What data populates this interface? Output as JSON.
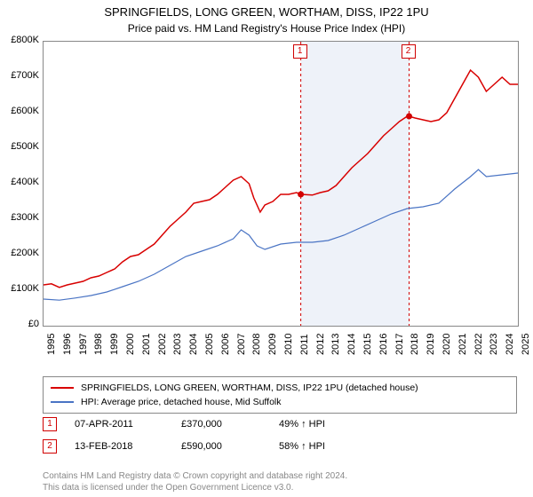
{
  "title": "SPRINGFIELDS, LONG GREEN, WORTHAM, DISS, IP22 1PU",
  "subtitle": "Price paid vs. HM Land Registry's House Price Index (HPI)",
  "chart": {
    "type": "line",
    "background_color": "#ffffff",
    "border_color": "#888888",
    "ylim": [
      0,
      800000
    ],
    "ytick_step": 100000,
    "yticks": [
      "£0",
      "£100K",
      "£200K",
      "£300K",
      "£400K",
      "£500K",
      "£600K",
      "£700K",
      "£800K"
    ],
    "xlim": [
      1995,
      2025
    ],
    "xticks": [
      "1995",
      "1996",
      "1997",
      "1998",
      "1999",
      "2000",
      "2001",
      "2002",
      "2003",
      "2004",
      "2005",
      "2006",
      "2007",
      "2008",
      "2009",
      "2010",
      "2011",
      "2012",
      "2013",
      "2014",
      "2015",
      "2016",
      "2017",
      "2018",
      "2019",
      "2020",
      "2021",
      "2022",
      "2023",
      "2024",
      "2025"
    ],
    "label_fontsize": 11,
    "shaded": {
      "start": 2011.27,
      "end": 2018.12,
      "color": "#eef2f9"
    },
    "markers": [
      {
        "id": "1",
        "x": 2011.27,
        "price": 370000
      },
      {
        "id": "2",
        "x": 2018.12,
        "price": 590000
      }
    ],
    "marker_line_color": "#d00000",
    "marker_point_color": "#d00000",
    "series": [
      {
        "name": "SPRINGFIELDS, LONG GREEN, WORTHAM, DISS, IP22 1PU (detached house)",
        "color": "#d80000",
        "line_width": 1.5,
        "data": [
          [
            1995,
            115000
          ],
          [
            1995.5,
            118000
          ],
          [
            1996,
            108000
          ],
          [
            1996.5,
            115000
          ],
          [
            1997,
            120000
          ],
          [
            1997.5,
            125000
          ],
          [
            1998,
            135000
          ],
          [
            1998.5,
            140000
          ],
          [
            1999,
            150000
          ],
          [
            1999.5,
            160000
          ],
          [
            2000,
            180000
          ],
          [
            2000.5,
            195000
          ],
          [
            2001,
            200000
          ],
          [
            2001.5,
            215000
          ],
          [
            2002,
            230000
          ],
          [
            2002.5,
            255000
          ],
          [
            2003,
            280000
          ],
          [
            2003.5,
            300000
          ],
          [
            2004,
            320000
          ],
          [
            2004.5,
            345000
          ],
          [
            2005,
            350000
          ],
          [
            2005.5,
            355000
          ],
          [
            2006,
            370000
          ],
          [
            2006.5,
            390000
          ],
          [
            2007,
            410000
          ],
          [
            2007.5,
            420000
          ],
          [
            2008,
            400000
          ],
          [
            2008.3,
            360000
          ],
          [
            2008.7,
            320000
          ],
          [
            2009,
            340000
          ],
          [
            2009.5,
            350000
          ],
          [
            2010,
            370000
          ],
          [
            2010.5,
            370000
          ],
          [
            2011,
            375000
          ],
          [
            2011.27,
            370000
          ],
          [
            2012,
            368000
          ],
          [
            2012.5,
            375000
          ],
          [
            2013,
            380000
          ],
          [
            2013.5,
            395000
          ],
          [
            2014,
            420000
          ],
          [
            2014.5,
            445000
          ],
          [
            2015,
            465000
          ],
          [
            2015.5,
            485000
          ],
          [
            2016,
            510000
          ],
          [
            2016.5,
            535000
          ],
          [
            2017,
            555000
          ],
          [
            2017.5,
            575000
          ],
          [
            2018,
            590000
          ],
          [
            2018.12,
            590000
          ],
          [
            2018.5,
            585000
          ],
          [
            2019,
            580000
          ],
          [
            2019.5,
            575000
          ],
          [
            2020,
            580000
          ],
          [
            2020.5,
            600000
          ],
          [
            2021,
            640000
          ],
          [
            2021.5,
            680000
          ],
          [
            2022,
            720000
          ],
          [
            2022.5,
            700000
          ],
          [
            2023,
            660000
          ],
          [
            2023.5,
            680000
          ],
          [
            2024,
            700000
          ],
          [
            2024.5,
            680000
          ],
          [
            2025,
            680000
          ]
        ]
      },
      {
        "name": "HPI: Average price, detached house, Mid Suffolk",
        "color": "#4a74c4",
        "line_width": 1.2,
        "data": [
          [
            1995,
            75000
          ],
          [
            1996,
            72000
          ],
          [
            1997,
            78000
          ],
          [
            1998,
            85000
          ],
          [
            1999,
            95000
          ],
          [
            2000,
            110000
          ],
          [
            2001,
            125000
          ],
          [
            2002,
            145000
          ],
          [
            2003,
            170000
          ],
          [
            2004,
            195000
          ],
          [
            2005,
            210000
          ],
          [
            2006,
            225000
          ],
          [
            2007,
            245000
          ],
          [
            2007.5,
            270000
          ],
          [
            2008,
            255000
          ],
          [
            2008.5,
            225000
          ],
          [
            2009,
            215000
          ],
          [
            2010,
            230000
          ],
          [
            2011,
            235000
          ],
          [
            2012,
            235000
          ],
          [
            2013,
            240000
          ],
          [
            2014,
            255000
          ],
          [
            2015,
            275000
          ],
          [
            2016,
            295000
          ],
          [
            2017,
            315000
          ],
          [
            2018,
            330000
          ],
          [
            2019,
            335000
          ],
          [
            2020,
            345000
          ],
          [
            2021,
            385000
          ],
          [
            2022,
            420000
          ],
          [
            2022.5,
            440000
          ],
          [
            2023,
            420000
          ],
          [
            2024,
            425000
          ],
          [
            2025,
            430000
          ]
        ]
      }
    ]
  },
  "legend": {
    "series1": "SPRINGFIELDS, LONG GREEN, WORTHAM, DISS, IP22 1PU (detached house)",
    "series2": "HPI: Average price, detached house, Mid Suffolk"
  },
  "sales": [
    {
      "num": "1",
      "date": "07-APR-2011",
      "price": "£370,000",
      "hpi": "49% ↑ HPI"
    },
    {
      "num": "2",
      "date": "13-FEB-2018",
      "price": "£590,000",
      "hpi": "58% ↑ HPI"
    }
  ],
  "footer": {
    "line1": "Contains HM Land Registry data © Crown copyright and database right 2024.",
    "line2": "This data is licensed under the Open Government Licence v3.0."
  }
}
